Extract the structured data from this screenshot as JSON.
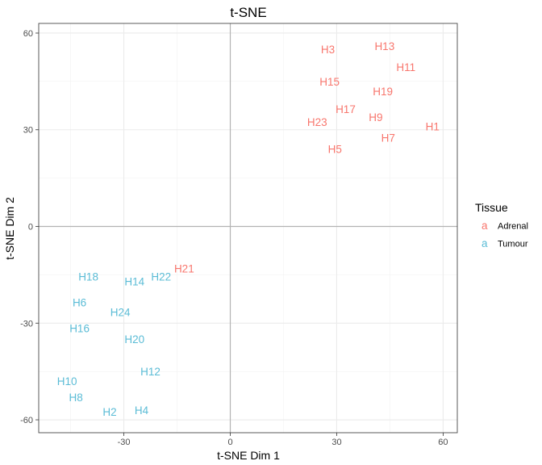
{
  "chart_data": {
    "type": "scatter",
    "title": "t-SNE",
    "xlabel": "t-SNE Dim 1",
    "ylabel": "t-SNE Dim 2",
    "xlim": [
      -54,
      64
    ],
    "ylim": [
      -64,
      63
    ],
    "xticks": [
      -30,
      0,
      30,
      60
    ],
    "yticks": [
      -60,
      -30,
      0,
      30,
      60
    ],
    "grid": true,
    "legend": {
      "title": "Tissue",
      "position": "right",
      "glyph": "a"
    },
    "series": [
      {
        "name": "Adrenal",
        "color": "#F8766D",
        "points": [
          {
            "label": "H3",
            "x": 27.5,
            "y": 55
          },
          {
            "label": "H13",
            "x": 43.5,
            "y": 56
          },
          {
            "label": "H11",
            "x": 49.5,
            "y": 49.5
          },
          {
            "label": "H15",
            "x": 28,
            "y": 45
          },
          {
            "label": "H19",
            "x": 43,
            "y": 42
          },
          {
            "label": "H17",
            "x": 32.5,
            "y": 36.5
          },
          {
            "label": "H9",
            "x": 41,
            "y": 34
          },
          {
            "label": "H23",
            "x": 24.5,
            "y": 32.5
          },
          {
            "label": "H1",
            "x": 57,
            "y": 31
          },
          {
            "label": "H7",
            "x": 44.5,
            "y": 27.5
          },
          {
            "label": "H5",
            "x": 29.5,
            "y": 24
          },
          {
            "label": "H21",
            "x": -13,
            "y": -13
          }
        ]
      },
      {
        "name": "Tumour",
        "color": "#5BBCD6",
        "points": [
          {
            "label": "H18",
            "x": -40,
            "y": -15.5
          },
          {
            "label": "H14",
            "x": -27,
            "y": -17
          },
          {
            "label": "H22",
            "x": -19.5,
            "y": -15.5
          },
          {
            "label": "H6",
            "x": -42.5,
            "y": -23.5
          },
          {
            "label": "H24",
            "x": -31,
            "y": -26.5
          },
          {
            "label": "H16",
            "x": -42.5,
            "y": -31.5
          },
          {
            "label": "H20",
            "x": -27,
            "y": -35
          },
          {
            "label": "H12",
            "x": -22.5,
            "y": -45
          },
          {
            "label": "H10",
            "x": -46,
            "y": -48
          },
          {
            "label": "H8",
            "x": -43.5,
            "y": -53
          },
          {
            "label": "H2",
            "x": -34,
            "y": -57.5
          },
          {
            "label": "H4",
            "x": -25,
            "y": -57
          }
        ]
      }
    ]
  }
}
